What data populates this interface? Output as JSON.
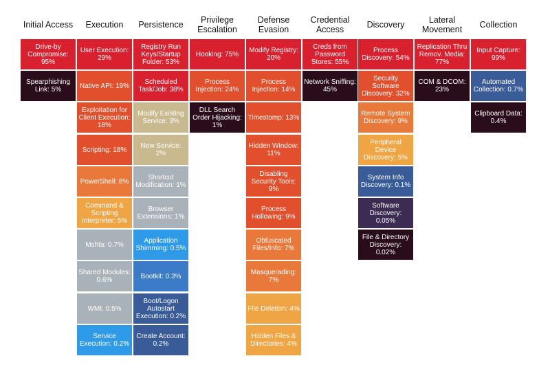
{
  "colors": {
    "red": "#d8202f",
    "dark": "#2a0d1a",
    "orange_red": "#e24f2c",
    "orange": "#e8793a",
    "amber": "#f0a544",
    "tan": "#c9b98e",
    "gray": "#a9b2b8",
    "light_blue": "#2f9be8",
    "mid_blue": "#3b7bc8",
    "steel_blue": "#395c99",
    "purple": "#3c2b52",
    "text_light": "#ffffff",
    "text_dark": "#111111"
  },
  "columns": [
    {
      "title": "Initial Access",
      "cells": [
        {
          "label": "Drive-by Compromise: 95%",
          "color": "red"
        },
        {
          "label": "Spearphishing Link: 5%",
          "color": "dark"
        }
      ]
    },
    {
      "title": "Execution",
      "cells": [
        {
          "label": "User Execution: 29%",
          "color": "red"
        },
        {
          "label": "Native API: 19%",
          "color": "orange_red"
        },
        {
          "label": "Exploitation for Client Execution: 18%",
          "color": "orange_red"
        },
        {
          "label": "Scripting: 18%",
          "color": "orange_red"
        },
        {
          "label": "PowerShell: 8%",
          "color": "orange"
        },
        {
          "label": "Command & Scripting Interpreter: 5%",
          "color": "amber"
        },
        {
          "label": "Mshta: 0.7%",
          "color": "gray"
        },
        {
          "label": "Shared Modules: 0.6%",
          "color": "gray"
        },
        {
          "label": "WMI: 0.5%",
          "color": "gray"
        },
        {
          "label": "Service Execution: 0.2%",
          "color": "light_blue"
        }
      ]
    },
    {
      "title": "Persistence",
      "cells": [
        {
          "label": "Registry Run Keys/Startup Folder: 53%",
          "color": "red"
        },
        {
          "label": "Scheduled Task/Job: 38%",
          "color": "red"
        },
        {
          "label": "Modify Existing Service: 3%",
          "color": "tan"
        },
        {
          "label": "New Service: 2%",
          "color": "tan"
        },
        {
          "label": "Shortcut Modification: 1%",
          "color": "gray"
        },
        {
          "label": "Browser Extensions: 1%",
          "color": "gray"
        },
        {
          "label": "Application Shimming: 0.5%",
          "color": "light_blue"
        },
        {
          "label": "Bootkit: 0.3%",
          "color": "mid_blue"
        },
        {
          "label": "Boot/Logon Autostart Execution: 0.2%",
          "color": "steel_blue"
        },
        {
          "label": "Create Account: 0.2%",
          "color": "steel_blue"
        }
      ]
    },
    {
      "title": "Privilege Escalation",
      "cells": [
        {
          "label": "Hooking: 75%",
          "color": "red"
        },
        {
          "label": "Process Injection: 24%",
          "color": "orange_red"
        },
        {
          "label": "DLL Search Order Hijacking: 1%",
          "color": "dark"
        }
      ]
    },
    {
      "title": "Defense Evasion",
      "cells": [
        {
          "label": "Modify Registry: 20%",
          "color": "red"
        },
        {
          "label": "Process Injection: 14%",
          "color": "orange_red"
        },
        {
          "label": "Timestomp: 13%",
          "color": "orange_red"
        },
        {
          "label": "Hidden Window: 11%",
          "color": "orange_red"
        },
        {
          "label": "Disabling Security Tools: 9%",
          "color": "orange_red"
        },
        {
          "label": "Process Hollowing: 9%",
          "color": "orange_red"
        },
        {
          "label": "Obfuscated Files/Info: 7%",
          "color": "orange"
        },
        {
          "label": "Masquerading: 7%",
          "color": "orange"
        },
        {
          "label": "File Deletion: 4%",
          "color": "amber"
        },
        {
          "label": "Hidden Files & Directories: 4%",
          "color": "amber"
        }
      ]
    },
    {
      "title": "Credential Access",
      "cells": [
        {
          "label": "Creds from Password Stores: 55%",
          "color": "red"
        },
        {
          "label": "Network Sniffing: 45%",
          "color": "dark"
        }
      ]
    },
    {
      "title": "Discovery",
      "cells": [
        {
          "label": "Process Discovery: 54%",
          "color": "red"
        },
        {
          "label": "Security Software Discovery: 32%",
          "color": "orange_red"
        },
        {
          "label": "Remote System Discovery: 9%",
          "color": "orange"
        },
        {
          "label": "Peripheral Device Discovery: 5%",
          "color": "amber"
        },
        {
          "label": "System Info Discovery: 0.1%",
          "color": "steel_blue"
        },
        {
          "label": "Software Discovery: 0.05%",
          "color": "purple"
        },
        {
          "label": "File & Directory Discovery: 0.02%",
          "color": "dark"
        }
      ]
    },
    {
      "title": "Lateral Movement",
      "cells": [
        {
          "label": "Replication Thru Remov. Media: 77%",
          "color": "red"
        },
        {
          "label": "COM & DCOM: 23%",
          "color": "dark"
        }
      ]
    },
    {
      "title": "Collection",
      "cells": [
        {
          "label": "Input Capture: 99%",
          "color": "red"
        },
        {
          "label": "Automated Collection: 0.7%",
          "color": "steel_blue"
        },
        {
          "label": "Clipboard Data: 0.4%",
          "color": "dark"
        }
      ]
    }
  ]
}
